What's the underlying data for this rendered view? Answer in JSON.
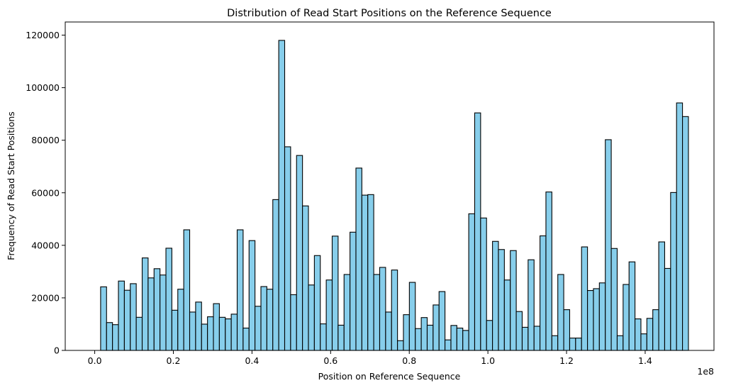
{
  "chart_data": {
    "type": "bar",
    "title": "Distribution of Read Start Positions on the Reference Sequence",
    "xlabel": "Position on Reference Sequence",
    "ylabel": "Frequency of Read Start Positions",
    "x_offset_label": "1e8",
    "xlim": [
      -0.075,
      1.575
    ],
    "ylim": [
      0,
      125000
    ],
    "x_ticks": [
      0.0,
      0.2,
      0.4,
      0.6,
      0.8,
      1.0,
      1.2,
      1.4
    ],
    "x_tick_labels": [
      "0.0",
      "0.2",
      "0.4",
      "0.6",
      "0.8",
      "1.0",
      "1.2",
      "1.4"
    ],
    "y_ticks": [
      0,
      20000,
      40000,
      60000,
      80000,
      100000,
      120000
    ],
    "y_tick_labels": [
      "0",
      "20000",
      "40000",
      "60000",
      "80000",
      "100000",
      "120000"
    ],
    "bins": {
      "start": 0.015,
      "end": 1.51,
      "count": 100
    },
    "values": [
      24200,
      10600,
      9800,
      26400,
      22900,
      25400,
      12600,
      35200,
      27600,
      31100,
      28700,
      38900,
      15300,
      23300,
      45900,
      14600,
      18400,
      10000,
      12800,
      17800,
      12600,
      12000,
      13800,
      45900,
      8500,
      41800,
      16800,
      24300,
      23300,
      57400,
      118000,
      77500,
      21200,
      74200,
      55000,
      24900,
      36100,
      10100,
      26800,
      43500,
      9600,
      28900,
      45000,
      69400,
      59100,
      59300,
      28900,
      31600,
      14600,
      30600,
      3700,
      13600,
      25900,
      8300,
      12500,
      9600,
      17300,
      22400,
      4000,
      9500,
      8500,
      7600,
      52000,
      90400,
      50400,
      11400,
      41500,
      38400,
      26800,
      38000,
      14800,
      8800,
      34500,
      9200,
      43600,
      60300,
      5600,
      28900,
      15500,
      4700,
      4700,
      39400,
      22800,
      23500,
      25700,
      80200,
      38800,
      5600,
      25100,
      33700,
      12000,
      6300,
      12200,
      15500,
      41300,
      31200,
      60100,
      94200,
      89000
    ],
    "bar_color": "#87ceeb",
    "edge_color": "#000000",
    "grid": false
  }
}
